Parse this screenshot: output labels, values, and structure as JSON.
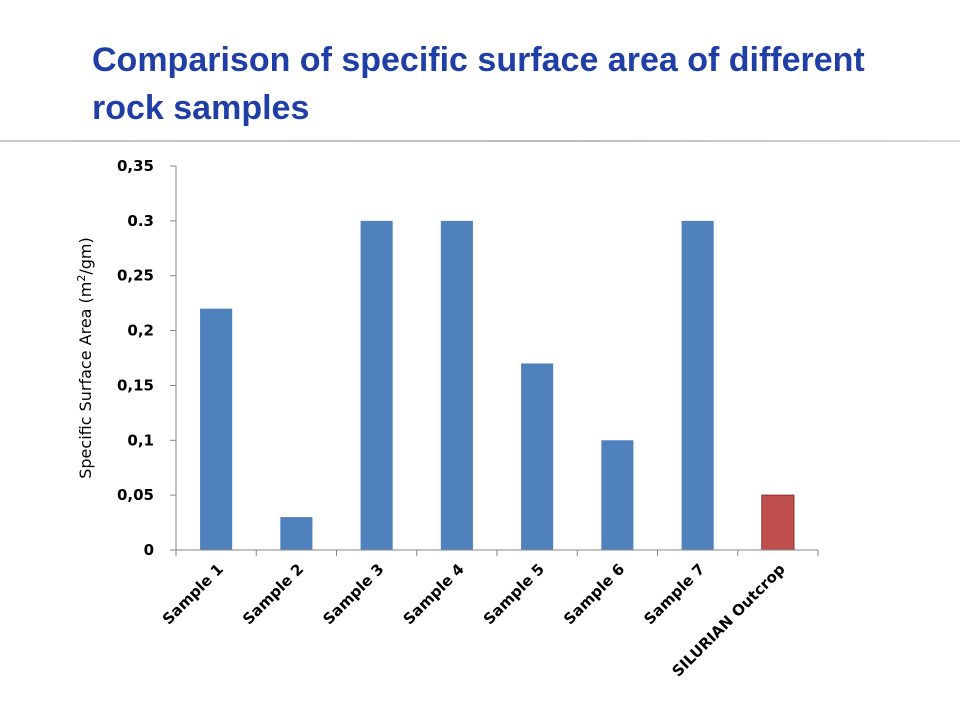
{
  "title": "Comparison of specific surface area of different rock samples",
  "chart_data": {
    "type": "bar",
    "title": "Comparison of specific surface area of different rock samples",
    "ylabel": "Specific Surface Area (m²/gm)",
    "ylabel_parts": {
      "before": "Specific Surface Area (m",
      "sup": "2",
      "after": "/gm)"
    },
    "xlabel": "",
    "categories": [
      "Sample 1",
      "Sample 2",
      "Sample 3",
      "Sample 4",
      "Sample 5",
      "Sample 6",
      "Sample 7",
      "SILURIAN Outcrop"
    ],
    "values": [
      0.22,
      0.03,
      0.3,
      0.3,
      0.17,
      0.1,
      0.3,
      0.05
    ],
    "bar_colors": [
      "#4f81bd",
      "#4f81bd",
      "#4f81bd",
      "#4f81bd",
      "#4f81bd",
      "#4f81bd",
      "#4f81bd",
      "#c0504d"
    ],
    "ylim": [
      0,
      0.35
    ],
    "yticks": [
      0,
      0.05,
      0.1,
      0.15,
      0.2,
      0.25,
      0.3,
      0.35
    ],
    "ytick_labels": [
      "0",
      "0,05",
      "0,1",
      "0,15",
      "0,2",
      "0,25",
      "0.3",
      "0,35"
    ],
    "grid": false,
    "legend": "none"
  },
  "colors": {
    "title": "#1f3fa6",
    "bar_default": "#4f81bd",
    "bar_highlight": "#c0504d",
    "axis": "#868686"
  }
}
